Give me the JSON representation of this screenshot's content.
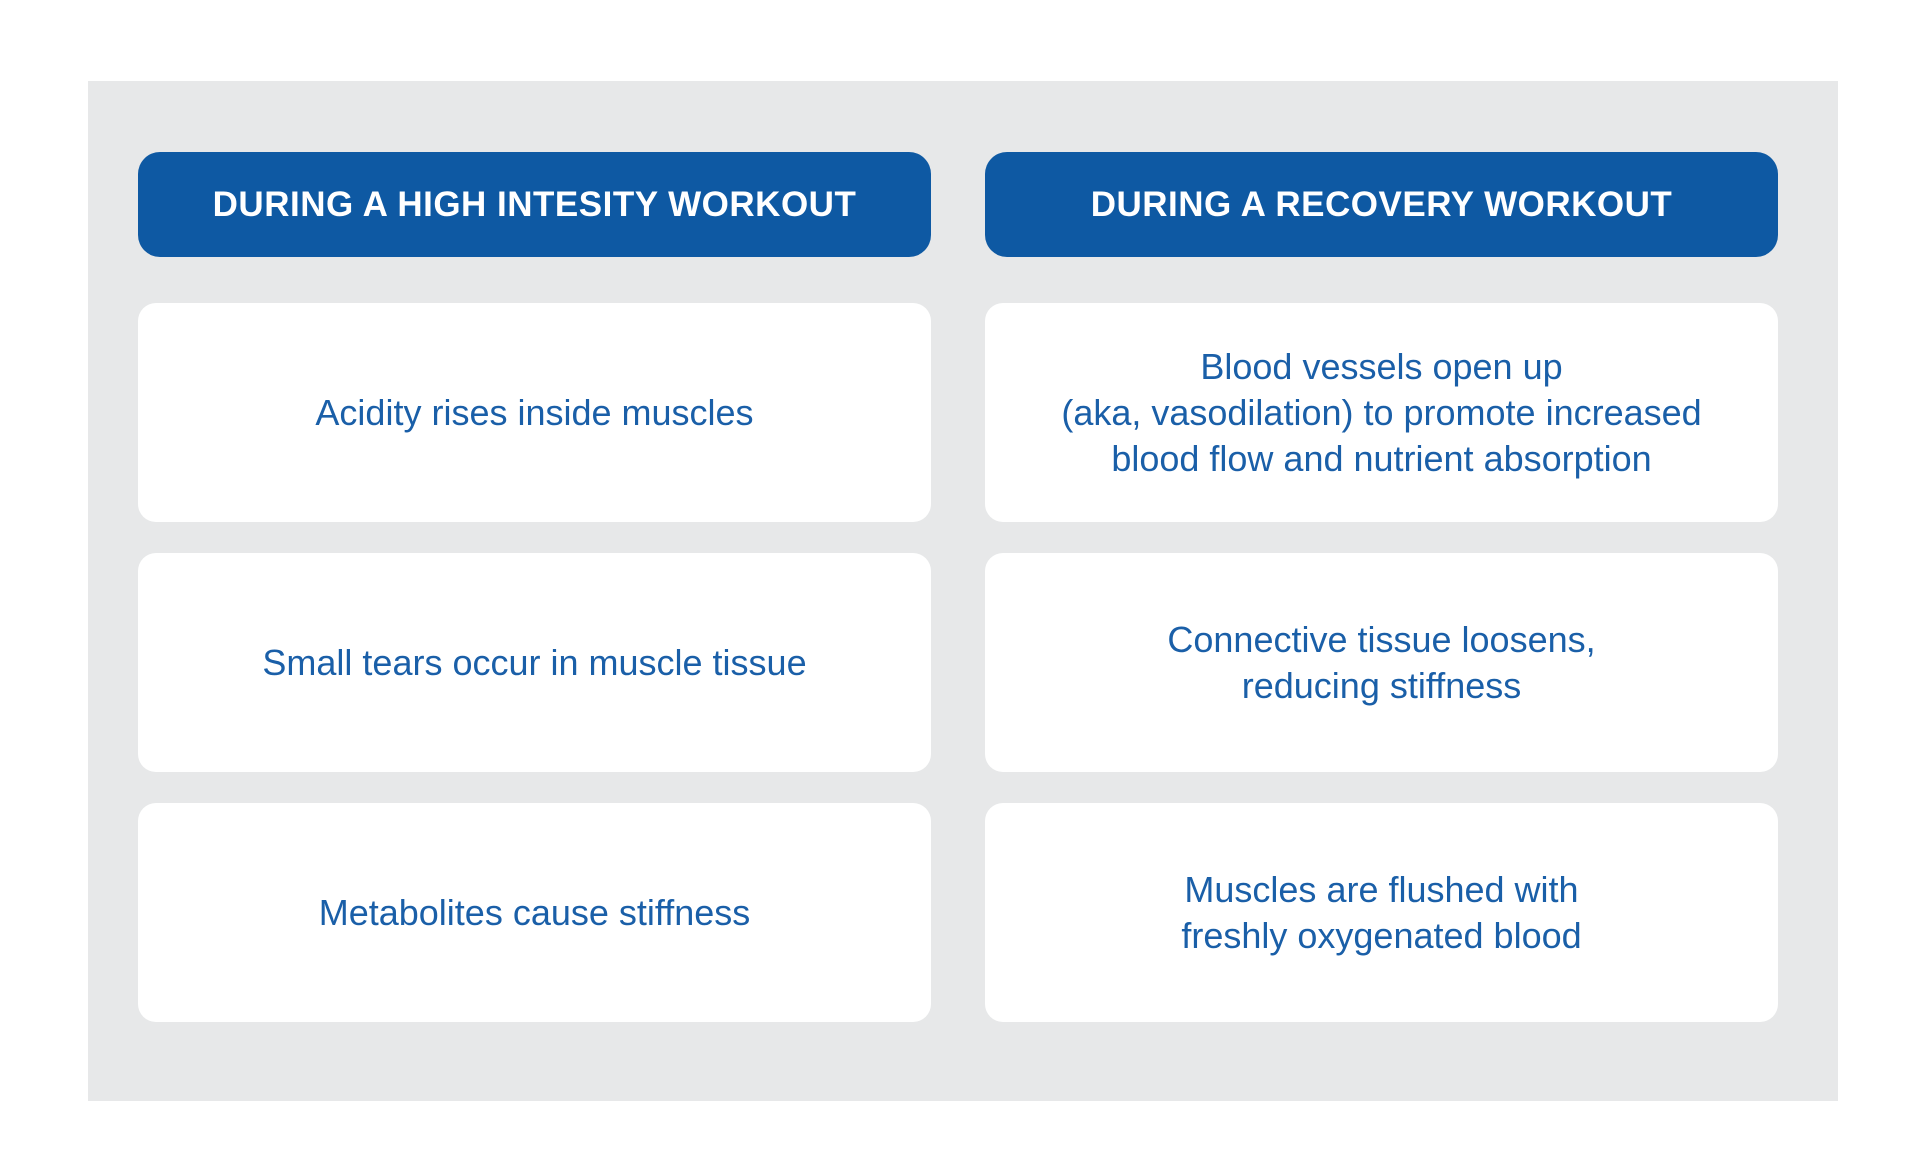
{
  "colors": {
    "header_background": "#0e59a3",
    "card_text": "#1a5fa8",
    "panel_background": "#e7e8e9",
    "card_background": "#ffffff",
    "page_background": "#ffffff"
  },
  "columns": [
    {
      "header": "DURING A HIGH INTESITY WORKOUT",
      "cards": [
        {
          "lines": [
            "Acidity rises inside muscles"
          ]
        },
        {
          "lines": [
            "Small tears occur in muscle tissue"
          ]
        },
        {
          "lines": [
            "Metabolites cause stiffness"
          ]
        }
      ]
    },
    {
      "header": "DURING A RECOVERY WORKOUT",
      "cards": [
        {
          "lines": [
            "Blood vessels open up",
            "(aka, vasodilation) to promote increased",
            "blood flow and nutrient absorption"
          ]
        },
        {
          "lines": [
            "Connective tissue loosens,",
            "reducing stiffness"
          ]
        },
        {
          "lines": [
            "Muscles are flushed with",
            "freshly oxygenated blood"
          ]
        }
      ]
    }
  ]
}
